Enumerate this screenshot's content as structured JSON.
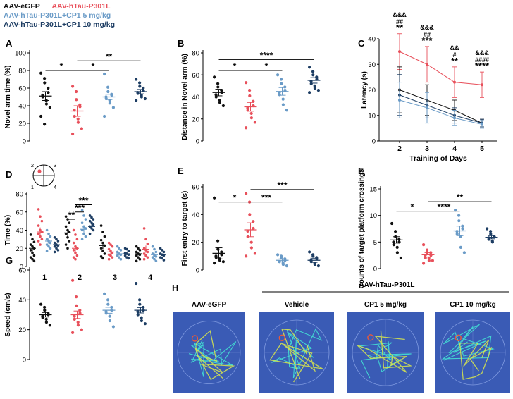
{
  "figure": {
    "colors": {
      "egfp": "#111111",
      "p301l": "#e8505b",
      "cp5": "#6a9bc7",
      "cp10": "#1d3d63"
    },
    "legend": [
      {
        "label": "AAV-eGFP",
        "color_key": "egfp"
      },
      {
        "label": "AAV-hTau-P301L",
        "color_key": "p301l"
      },
      {
        "label": "AAV-hTau-P301L+CP1 5 mg/kg",
        "color_key": "cp5"
      },
      {
        "label": "AAV-hTau-P301L+CP1 10 mg/kg",
        "color_key": "cp10"
      }
    ]
  },
  "chart_data": [
    {
      "panel": "A",
      "type": "scatter",
      "ylabel": "Novel arm time (%)",
      "ylim": [
        0,
        100
      ],
      "yticks": [
        0,
        20,
        40,
        60,
        80,
        100
      ],
      "groups": [
        {
          "color_key": "egfp",
          "mean": 51,
          "sem": 5,
          "values": [
            77,
            71,
            66,
            60,
            55,
            52,
            50,
            46,
            42,
            38,
            28,
            19
          ]
        },
        {
          "color_key": "p301l",
          "mean": 34,
          "sem": 6,
          "values": [
            62,
            56,
            47,
            41,
            39,
            35,
            28,
            25,
            21,
            14,
            8
          ]
        },
        {
          "color_key": "cp5",
          "mean": 50,
          "sem": 3,
          "values": [
            76,
            61,
            56,
            53,
            52,
            50,
            48,
            46,
            43,
            38,
            28
          ]
        },
        {
          "color_key": "cp10",
          "mean": 56,
          "sem": 2.5,
          "values": [
            70,
            66,
            62,
            60,
            57,
            55,
            54,
            52,
            50,
            48,
            46
          ]
        }
      ],
      "sig": [
        {
          "from": 1,
          "to": 2,
          "label": "*",
          "y": 80
        },
        {
          "from": 2,
          "to": 3,
          "label": "*",
          "y": 80
        },
        {
          "from": 2,
          "to": 4,
          "label": "**",
          "y": 91
        }
      ]
    },
    {
      "panel": "B",
      "type": "scatter",
      "ylabel": "Distance in Novel arm (%)",
      "ylim": [
        0,
        80
      ],
      "yticks": [
        0,
        20,
        40,
        60,
        80
      ],
      "groups": [
        {
          "color_key": "egfp",
          "mean": 44,
          "sem": 3,
          "values": [
            58,
            52,
            49,
            46,
            44,
            42,
            40,
            37,
            35,
            32
          ]
        },
        {
          "color_key": "p301l",
          "mean": 31,
          "sem": 4,
          "values": [
            53,
            46,
            41,
            36,
            32,
            30,
            28,
            25,
            21,
            17,
            12
          ]
        },
        {
          "color_key": "cp5",
          "mean": 45,
          "sem": 3.5,
          "values": [
            60,
            56,
            52,
            49,
            46,
            44,
            42,
            38,
            33,
            28
          ]
        },
        {
          "color_key": "cp10",
          "mean": 55,
          "sem": 2.5,
          "values": [
            67,
            63,
            60,
            58,
            56,
            54,
            52,
            50,
            48,
            46,
            44
          ]
        }
      ],
      "sig": [
        {
          "from": 1,
          "to": 2,
          "label": "*",
          "y": 64
        },
        {
          "from": 2,
          "to": 3,
          "label": "*",
          "y": 64
        },
        {
          "from": 1,
          "to": 4,
          "label": "****",
          "y": 74
        }
      ]
    },
    {
      "panel": "C",
      "type": "line",
      "xlabel": "Training of Days",
      "ylabel": "Latency (s)",
      "x": [
        2,
        3,
        4,
        5
      ],
      "ylim": [
        0,
        40
      ],
      "yticks": [
        0,
        10,
        20,
        30,
        40
      ],
      "series": [
        {
          "color_key": "p301l",
          "values": [
            35,
            30,
            23,
            22
          ],
          "err": [
            7,
            7,
            6,
            5
          ]
        },
        {
          "color_key": "egfp",
          "values": [
            20,
            16,
            12,
            7
          ],
          "err": [
            9,
            6,
            4,
            1.5
          ]
        },
        {
          "color_key": "cp10",
          "values": [
            18,
            14,
            10,
            7
          ],
          "err": [
            8,
            5,
            3,
            1.5
          ]
        },
        {
          "color_key": "cp5",
          "values": [
            16,
            13,
            9,
            6.5
          ],
          "err": [
            7,
            6,
            3,
            1.5
          ]
        }
      ],
      "annotations": [
        {
          "x": 2,
          "lines": [
            "&&&",
            "##",
            "**"
          ]
        },
        {
          "x": 3,
          "lines": [
            "&&&",
            "##",
            "***"
          ]
        },
        {
          "x": 4,
          "lines": [
            "&&",
            "#",
            "**"
          ]
        },
        {
          "x": 5,
          "lines": [
            "&&&",
            "####",
            "****"
          ]
        }
      ]
    },
    {
      "panel": "D",
      "type": "scatter",
      "ylabel": "Time (%)",
      "ylim": [
        0,
        80
      ],
      "yticks": [
        0,
        20,
        40,
        60,
        80
      ],
      "categories": [
        "1",
        "2",
        "3",
        "4"
      ],
      "quadrant_labels": [
        "1",
        "2",
        "3",
        "4"
      ],
      "clusters": [
        {
          "groups": [
            {
              "color_key": "egfp",
              "mean": 20,
              "sem": 4,
              "values": [
                35,
                30,
                27,
                24,
                22,
                20,
                18,
                15,
                12,
                10,
                8,
                6
              ]
            },
            {
              "color_key": "p301l",
              "mean": 38,
              "sem": 5,
              "values": [
                63,
                55,
                50,
                45,
                40,
                38,
                36,
                33,
                30,
                28,
                24
              ]
            },
            {
              "color_key": "cp5",
              "mean": 28,
              "sem": 3,
              "values": [
                40,
                36,
                33,
                30,
                28,
                26,
                24,
                22,
                20,
                17
              ]
            },
            {
              "color_key": "cp10",
              "mean": 24,
              "sem": 2,
              "values": [
                32,
                30,
                28,
                26,
                24,
                23,
                22,
                20,
                18,
                16
              ]
            }
          ]
        },
        {
          "groups": [
            {
              "color_key": "egfp",
              "mean": 37,
              "sem": 4,
              "values": [
                55,
                52,
                48,
                44,
                40,
                38,
                36,
                32,
                28,
                24,
                20
              ]
            },
            {
              "color_key": "p301l",
              "mean": 20,
              "sem": 4,
              "values": [
                40,
                35,
                30,
                26,
                22,
                20,
                18,
                15,
                12,
                10,
                8
              ]
            },
            {
              "color_key": "cp5",
              "mean": 41,
              "sem": 4,
              "values": [
                62,
                56,
                52,
                48,
                44,
                42,
                40,
                36,
                33,
                30
              ]
            },
            {
              "color_key": "cp10",
              "mean": 44,
              "sem": 3,
              "values": [
                56,
                54,
                52,
                50,
                48,
                46,
                44,
                42,
                40,
                36
              ]
            }
          ]
        },
        {
          "groups": [
            {
              "color_key": "egfp",
              "mean": 23,
              "sem": 4,
              "values": [
                45,
                38,
                33,
                29,
                26,
                23,
                20,
                17,
                14,
                11,
                9
              ]
            },
            {
              "color_key": "p301l",
              "mean": 16,
              "sem": 2.5,
              "values": [
                26,
                24,
                22,
                19,
                17,
                15,
                13,
                12,
                10,
                8
              ]
            },
            {
              "color_key": "cp5",
              "mean": 14,
              "sem": 2,
              "values": [
                22,
                20,
                18,
                16,
                14,
                13,
                12,
                10,
                8
              ]
            },
            {
              "color_key": "cp10",
              "mean": 14,
              "sem": 1.5,
              "values": [
                20,
                19,
                17,
                15,
                14,
                13,
                12,
                10,
                9
              ]
            }
          ]
        },
        {
          "groups": [
            {
              "color_key": "egfp",
              "mean": 14,
              "sem": 2,
              "values": [
                22,
                20,
                18,
                16,
                14,
                13,
                12,
                10,
                8,
                6
              ]
            },
            {
              "color_key": "p301l",
              "mean": 19,
              "sem": 4,
              "values": [
                42,
                30,
                25,
                20,
                18,
                16,
                14,
                12,
                10,
                8
              ]
            },
            {
              "color_key": "cp5",
              "mean": 13,
              "sem": 2,
              "values": [
                22,
                19,
                16,
                14,
                12,
                11,
                10,
                8,
                6
              ]
            },
            {
              "color_key": "cp10",
              "mean": 13,
              "sem": 1.5,
              "values": [
                20,
                18,
                16,
                14,
                13,
                12,
                10,
                9,
                7
              ]
            }
          ]
        }
      ],
      "sig": [
        {
          "cluster": 2,
          "from": 2,
          "to": 4,
          "label": "***",
          "y": 68
        },
        {
          "cluster": 2,
          "from": 2,
          "to": 3,
          "label": "***",
          "y": 60
        },
        {
          "cluster": 2,
          "from": 1,
          "to": 2,
          "label": "**",
          "y": 52
        }
      ]
    },
    {
      "panel": "E",
      "type": "scatter",
      "ylabel": "First entry to target (s)",
      "ylim": [
        0,
        60
      ],
      "yticks": [
        0,
        20,
        40,
        60
      ],
      "groups": [
        {
          "color_key": "egfp",
          "mean": 12,
          "sem": 4,
          "values": [
            52,
            21,
            15,
            13,
            11,
            10,
            9,
            8,
            7,
            6,
            5
          ]
        },
        {
          "color_key": "p301l",
          "mean": 29,
          "sem": 5,
          "values": [
            55,
            49,
            40,
            35,
            30,
            28,
            24,
            20,
            16,
            12,
            10
          ]
        },
        {
          "color_key": "cp5",
          "mean": 7,
          "sem": 1,
          "values": [
            11,
            10,
            9,
            8,
            7,
            6,
            6,
            5,
            4,
            3
          ]
        },
        {
          "color_key": "cp10",
          "mean": 7,
          "sem": 1.5,
          "values": [
            13,
            11,
            10,
            9,
            8,
            7,
            6,
            5,
            4,
            3
          ]
        }
      ],
      "sig": [
        {
          "from": 1,
          "to": 2,
          "label": "*",
          "y": 49
        },
        {
          "from": 2,
          "to": 3,
          "label": "***",
          "y": 49
        },
        {
          "from": 2,
          "to": 4,
          "label": "***",
          "y": 58
        }
      ]
    },
    {
      "panel": "F",
      "type": "scatter",
      "ylabel": "Counts of target platform crossings",
      "ylim": [
        0,
        15
      ],
      "yticks": [
        0,
        5,
        10,
        15
      ],
      "groups": [
        {
          "color_key": "egfp",
          "mean": 5.4,
          "sem": 0.6,
          "values": [
            8.5,
            7,
            6,
            5.5,
            5,
            5,
            4.5,
            4,
            3,
            2
          ]
        },
        {
          "color_key": "p301l",
          "mean": 2.6,
          "sem": 0.4,
          "values": [
            4.5,
            3.5,
            3,
            3,
            2.5,
            2.5,
            2,
            2,
            1.5,
            1.5,
            1
          ]
        },
        {
          "color_key": "cp5",
          "mean": 7.1,
          "sem": 0.9,
          "values": [
            11,
            10,
            9,
            8,
            7.5,
            7,
            6.5,
            6,
            4,
            3
          ]
        },
        {
          "color_key": "cp10",
          "mean": 5.9,
          "sem": 0.3,
          "values": [
            7.5,
            7,
            6.5,
            6,
            6,
            5.8,
            5.5,
            5.2,
            5
          ]
        }
      ],
      "sig": [
        {
          "from": 1,
          "to": 2,
          "label": "*",
          "y": 10.8
        },
        {
          "from": 2,
          "to": 3,
          "label": "****",
          "y": 10.8
        },
        {
          "from": 2,
          "to": 4,
          "label": "**",
          "y": 12.6
        }
      ]
    },
    {
      "panel": "G",
      "type": "scatter",
      "ylabel": "Speed (cm/s)",
      "ylim": [
        0,
        60
      ],
      "yticks": [
        0,
        20,
        40,
        60
      ],
      "groups": [
        {
          "color_key": "egfp",
          "mean": 30,
          "sem": 1.5,
          "values": [
            37,
            35,
            33,
            31,
            30,
            29,
            28,
            27,
            25,
            23
          ]
        },
        {
          "color_key": "p301l",
          "mean": 30,
          "sem": 2.5,
          "values": [
            53,
            42,
            36,
            33,
            31,
            29,
            27,
            25,
            23,
            20,
            18
          ]
        },
        {
          "color_key": "cp5",
          "mean": 33,
          "sem": 2,
          "values": [
            44,
            40,
            37,
            35,
            33,
            32,
            31,
            29,
            26,
            22
          ]
        },
        {
          "color_key": "cp10",
          "mean": 33,
          "sem": 1.8,
          "values": [
            51,
            40,
            37,
            35,
            33,
            32,
            30,
            28,
            26,
            24
          ]
        }
      ]
    },
    {
      "panel": "H",
      "type": "image",
      "group_header": "AAV-hTau-P301L",
      "titles": [
        "AAV-eGFP",
        "Vehicle",
        "CP1 5 mg/kg",
        "CP1 10 mg/kg"
      ]
    }
  ]
}
